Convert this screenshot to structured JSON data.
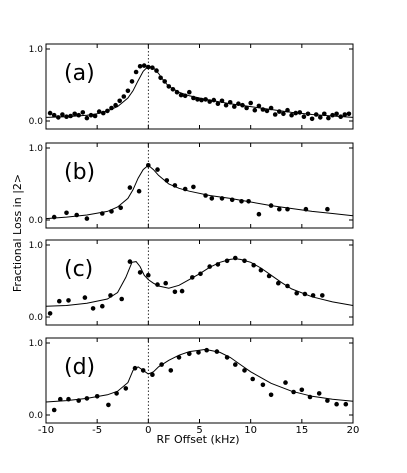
{
  "chart_data": {
    "type": "scatter",
    "xlabel": "RF Offset (kHz)",
    "ylabel": "Fractional Loss in |2>",
    "xlim": [
      -10,
      20
    ],
    "xticks": [
      "-10",
      "-5",
      "0",
      "5",
      "10",
      "15",
      "20"
    ],
    "yticks": [
      "0.0",
      "1.0"
    ],
    "grid": false,
    "colors": {
      "points": "#000000",
      "fit": "#000000",
      "zero_line": "#000000"
    },
    "panels": [
      {
        "label": "(a)",
        "ylim": [
          0,
          1.0
        ],
        "points": {
          "x": [
            -9.6,
            -9.2,
            -8.8,
            -8.4,
            -8.0,
            -7.6,
            -7.2,
            -6.8,
            -6.4,
            -6.0,
            -5.6,
            -5.2,
            -4.8,
            -4.4,
            -4.0,
            -3.6,
            -3.2,
            -2.8,
            -2.4,
            -2.0,
            -1.6,
            -1.2,
            -0.8,
            -0.4,
            0.0,
            0.4,
            0.8,
            1.2,
            1.6,
            2.0,
            2.4,
            2.8,
            3.2,
            3.6,
            4.0,
            4.4,
            4.8,
            5.2,
            5.6,
            6.0,
            6.4,
            6.8,
            7.2,
            7.6,
            8.0,
            8.4,
            8.8,
            9.2,
            9.6,
            10.0,
            10.4,
            10.8,
            11.2,
            11.6,
            12.0,
            12.4,
            12.8,
            13.2,
            13.6,
            14.0,
            14.4,
            14.8,
            15.2,
            15.6,
            16.0,
            16.4,
            16.8,
            17.2,
            17.6,
            18.0,
            18.4,
            18.8,
            19.2,
            19.6
          ],
          "y": [
            0.11,
            0.08,
            0.05,
            0.09,
            0.06,
            0.07,
            0.1,
            0.08,
            0.12,
            0.04,
            0.08,
            0.07,
            0.13,
            0.11,
            0.14,
            0.18,
            0.22,
            0.28,
            0.34,
            0.42,
            0.55,
            0.68,
            0.76,
            0.77,
            0.75,
            0.74,
            0.7,
            0.6,
            0.55,
            0.48,
            0.44,
            0.4,
            0.36,
            0.35,
            0.4,
            0.32,
            0.3,
            0.29,
            0.3,
            0.27,
            0.29,
            0.24,
            0.28,
            0.22,
            0.26,
            0.2,
            0.24,
            0.22,
            0.18,
            0.25,
            0.15,
            0.21,
            0.16,
            0.14,
            0.18,
            0.09,
            0.13,
            0.1,
            0.15,
            0.08,
            0.11,
            0.12,
            0.06,
            0.1,
            0.03,
            0.09,
            0.05,
            0.1,
            0.04,
            0.08,
            0.1,
            0.06,
            0.09,
            0.1
          ]
        },
        "fit": {
          "x": [
            -10,
            -8,
            -6,
            -5,
            -4,
            -3,
            -2,
            -1.5,
            -1,
            -0.5,
            0,
            0.5,
            1,
            1.5,
            2,
            3,
            4,
            5,
            6,
            8,
            10,
            12,
            14,
            16,
            18,
            20
          ],
          "y": [
            0.05,
            0.06,
            0.08,
            0.1,
            0.14,
            0.2,
            0.32,
            0.42,
            0.56,
            0.69,
            0.76,
            0.74,
            0.66,
            0.56,
            0.48,
            0.4,
            0.35,
            0.32,
            0.29,
            0.24,
            0.2,
            0.16,
            0.12,
            0.09,
            0.07,
            0.05
          ]
        }
      },
      {
        "label": "(b)",
        "ylim": [
          0,
          1.0
        ],
        "points": {
          "x": [
            -9.2,
            -8.0,
            -7.0,
            -6.0,
            -4.5,
            -3.6,
            -2.7,
            -1.8,
            -0.9,
            0.0,
            0.9,
            1.8,
            2.6,
            3.6,
            4.4,
            5.6,
            6.2,
            7.2,
            8.2,
            9.1,
            9.8,
            10.8,
            12.0,
            12.8,
            13.6,
            15.4,
            17.5
          ],
          "y": [
            0.04,
            0.1,
            0.07,
            0.02,
            0.09,
            0.12,
            0.17,
            0.45,
            0.4,
            0.76,
            0.7,
            0.55,
            0.48,
            0.43,
            0.46,
            0.34,
            0.3,
            0.3,
            0.28,
            0.26,
            0.26,
            0.08,
            0.2,
            0.15,
            0.15,
            0.15,
            0.15
          ]
        },
        "fit": {
          "x": [
            -10,
            -8,
            -6,
            -4,
            -3,
            -2,
            -1.5,
            -1,
            -0.5,
            0,
            0.5,
            1,
            2,
            3,
            4,
            6,
            8,
            10,
            12,
            14,
            16,
            18,
            20
          ],
          "y": [
            0.02,
            0.04,
            0.07,
            0.12,
            0.18,
            0.3,
            0.42,
            0.58,
            0.7,
            0.76,
            0.7,
            0.62,
            0.5,
            0.44,
            0.4,
            0.34,
            0.3,
            0.25,
            0.2,
            0.16,
            0.12,
            0.09,
            0.06
          ]
        }
      },
      {
        "label": "(c)",
        "ylim": [
          0,
          1.0
        ],
        "points": {
          "x": [
            -9.6,
            -8.7,
            -7.8,
            -6.2,
            -5.4,
            -4.5,
            -3.7,
            -2.6,
            -1.8,
            -0.8,
            0.0,
            0.9,
            1.7,
            2.6,
            3.3,
            4.3,
            5.1,
            6.0,
            6.8,
            7.7,
            8.5,
            9.4,
            10.3,
            11.0,
            11.8,
            12.7,
            13.6,
            14.5,
            15.3,
            16.1,
            17.0
          ],
          "y": [
            0.05,
            0.22,
            0.23,
            0.27,
            0.12,
            0.15,
            0.3,
            0.25,
            0.77,
            0.62,
            0.58,
            0.45,
            0.47,
            0.35,
            0.36,
            0.55,
            0.6,
            0.7,
            0.73,
            0.78,
            0.82,
            0.78,
            0.72,
            0.65,
            0.57,
            0.47,
            0.43,
            0.33,
            0.32,
            0.3,
            0.3
          ]
        },
        "fit": {
          "x": [
            -10,
            -8,
            -6,
            -4,
            -3,
            -2.2,
            -1.6,
            -1.2,
            -0.8,
            -0.4,
            0,
            0.5,
            1,
            2,
            3,
            4,
            5,
            6,
            7,
            8,
            8.5,
            9,
            10,
            11,
            12,
            13,
            14,
            16,
            18,
            20
          ],
          "y": [
            0.15,
            0.16,
            0.19,
            0.25,
            0.34,
            0.55,
            0.76,
            0.77,
            0.7,
            0.58,
            0.52,
            0.47,
            0.43,
            0.4,
            0.44,
            0.52,
            0.6,
            0.69,
            0.76,
            0.8,
            0.81,
            0.8,
            0.76,
            0.68,
            0.58,
            0.48,
            0.39,
            0.28,
            0.21,
            0.16
          ]
        }
      },
      {
        "label": "(d)",
        "ylim": [
          0,
          1.0
        ],
        "points": {
          "x": [
            -9.2,
            -8.6,
            -7.8,
            -6.8,
            -6.0,
            -5.0,
            -3.9,
            -3.1,
            -2.2,
            -1.3,
            -0.5,
            0.4,
            1.3,
            2.2,
            3.0,
            4.0,
            4.9,
            5.7,
            6.7,
            7.7,
            8.5,
            9.4,
            10.2,
            11.2,
            12.0,
            13.4,
            14.2,
            15.0,
            15.8,
            16.7,
            17.5,
            18.4,
            19.3
          ],
          "y": [
            0.07,
            0.22,
            0.22,
            0.2,
            0.23,
            0.26,
            0.14,
            0.3,
            0.37,
            0.65,
            0.62,
            0.56,
            0.7,
            0.62,
            0.8,
            0.85,
            0.87,
            0.9,
            0.88,
            0.8,
            0.7,
            0.62,
            0.5,
            0.42,
            0.28,
            0.45,
            0.32,
            0.35,
            0.25,
            0.3,
            0.2,
            0.15,
            0.15
          ]
        },
        "fit": {
          "x": [
            -10,
            -8,
            -6,
            -4,
            -3,
            -2,
            -1.5,
            -1,
            -0.5,
            0,
            0.5,
            1,
            2,
            3,
            4,
            5,
            5.5,
            6,
            7,
            8,
            9,
            10,
            12,
            14,
            16,
            18,
            20
          ],
          "y": [
            0.18,
            0.2,
            0.23,
            0.28,
            0.33,
            0.45,
            0.62,
            0.67,
            0.62,
            0.57,
            0.6,
            0.67,
            0.76,
            0.83,
            0.88,
            0.9,
            0.91,
            0.9,
            0.87,
            0.8,
            0.7,
            0.6,
            0.44,
            0.33,
            0.26,
            0.22,
            0.19
          ]
        }
      }
    ]
  }
}
